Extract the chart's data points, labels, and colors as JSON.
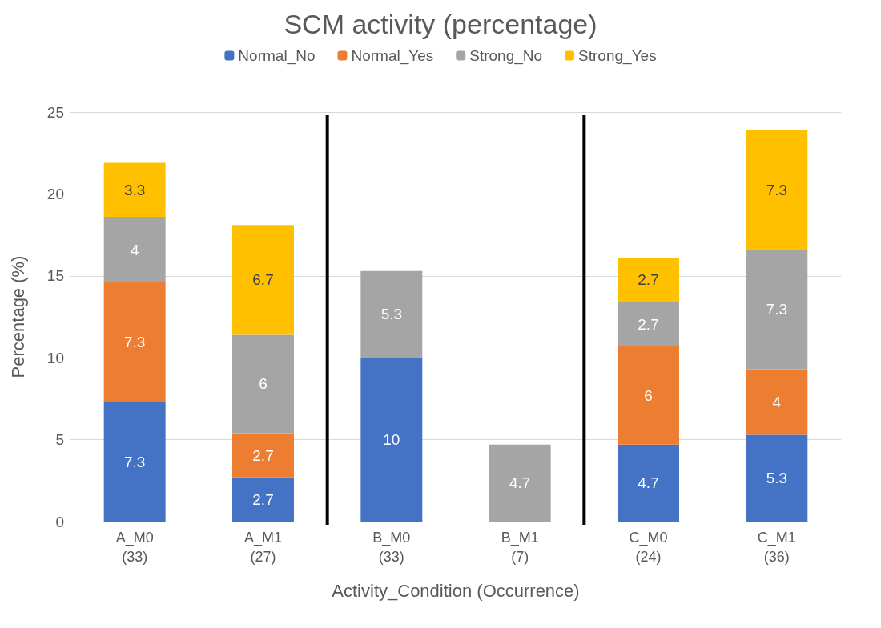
{
  "chart_data": {
    "type": "bar",
    "title": "SCM activity (percentage)",
    "xlabel": "Activity_Condition (Occurrence)",
    "ylabel": "Percentage (%)",
    "categories": [
      "A_M0\n(33)",
      "A_M1\n(27)",
      "B_M0\n(33)",
      "B_M1\n(7)",
      "C_M0\n(24)",
      "C_M1\n(36)"
    ],
    "series": [
      {
        "name": "Normal_No",
        "color": "#4472c4",
        "values": [
          7.3,
          2.7,
          10,
          null,
          4.7,
          5.3
        ]
      },
      {
        "name": "Normal_Yes",
        "color": "#ed7d31",
        "values": [
          7.3,
          2.7,
          null,
          null,
          6,
          4
        ]
      },
      {
        "name": "Strong_No",
        "color": "#a5a5a5",
        "values": [
          4,
          6,
          5.3,
          4.7,
          2.7,
          7.3
        ]
      },
      {
        "name": "Strong_Yes",
        "color": "#ffc000",
        "values": [
          3.3,
          6.7,
          null,
          null,
          2.7,
          7.3
        ]
      }
    ],
    "stacked": true,
    "data_labels": true,
    "ylim": [
      0,
      25
    ],
    "yticks": [
      0,
      5,
      10,
      15,
      20,
      25
    ],
    "grid": "y",
    "legend": "top"
  }
}
